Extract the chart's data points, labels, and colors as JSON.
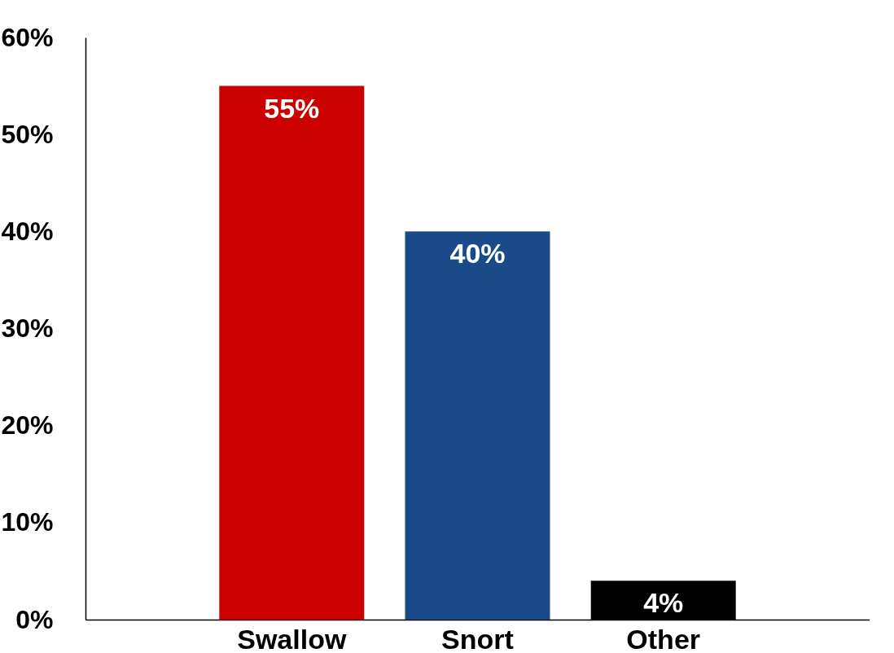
{
  "chart_data": {
    "type": "bar",
    "categories": [
      "Swallow",
      "Snort",
      "Other"
    ],
    "values": [
      55,
      40,
      4
    ],
    "colors": [
      "#cc0000",
      "#1a4a8a",
      "#000000"
    ],
    "data_labels": true,
    "value_labels": [
      "55%",
      "40%",
      "4%"
    ],
    "ylim": [
      0,
      60
    ],
    "yticks": [
      {
        "value": 0,
        "label": "0%"
      },
      {
        "value": 10,
        "label": "10%"
      },
      {
        "value": 20,
        "label": "20%"
      },
      {
        "value": 30,
        "label": "30%"
      },
      {
        "value": 40,
        "label": "40%"
      },
      {
        "value": 50,
        "label": "50%"
      },
      {
        "value": 60,
        "label": "60%"
      }
    ],
    "grid": false
  }
}
